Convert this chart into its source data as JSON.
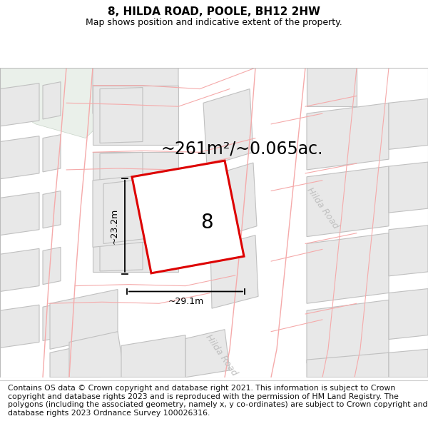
{
  "title": "8, HILDA ROAD, POOLE, BH12 2HW",
  "subtitle": "Map shows position and indicative extent of the property.",
  "area_label": "~261m²/~0.065ac.",
  "width_label": "~29.1m",
  "height_label": "~23.2m",
  "plot_number": "8",
  "disclaimer": "Contains OS data © Crown copyright and database right 2021. This information is subject to Crown copyright and database rights 2023 and is reproduced with the permission of HM Land Registry. The polygons (including the associated geometry, namely x, y co-ordinates) are subject to Crown copyright and database rights 2023 Ordnance Survey 100026316.",
  "map_bg": "#ffffff",
  "building_fill": "#e8e8e8",
  "building_edge": "#c0c0c0",
  "road_line_color": "#f5aaaa",
  "plot_edge_color": "#dd0000",
  "green_fill": "#eaf0ea",
  "road_label_color": "#c0c0c0",
  "title_fontsize": 11,
  "subtitle_fontsize": 9,
  "area_fontsize": 17,
  "disclaimer_fontsize": 7.8
}
